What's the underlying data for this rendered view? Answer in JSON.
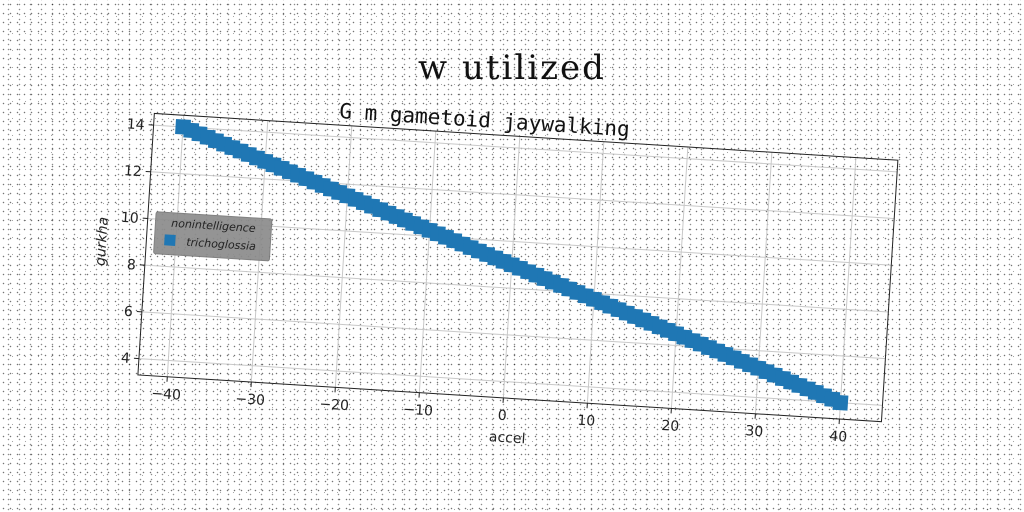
{
  "suptitle": "w utilized",
  "chart_data": {
    "type": "scatter",
    "title": "G m gametoid jaywalking",
    "xlabel": "accel",
    "ylabel": "gurkha",
    "xlim": [
      -43.5,
      45
    ],
    "ylim": [
      3.3,
      14.5
    ],
    "xticks": [
      -40,
      -30,
      -20,
      -10,
      0,
      10,
      20,
      30,
      40
    ],
    "yticks": [
      4,
      6,
      8,
      10,
      12,
      14
    ],
    "grid": true,
    "marker": "square",
    "legend": {
      "title": "nonintelligence",
      "placement": "center-left",
      "entries": [
        "trichoglossia"
      ]
    },
    "series": [
      {
        "name": "trichoglossia",
        "color": "#1f77b4",
        "x_start": -40,
        "x_end": 40,
        "x_step": 1,
        "y_at_x_start": 14,
        "y_at_x_end": 4
      }
    ]
  }
}
